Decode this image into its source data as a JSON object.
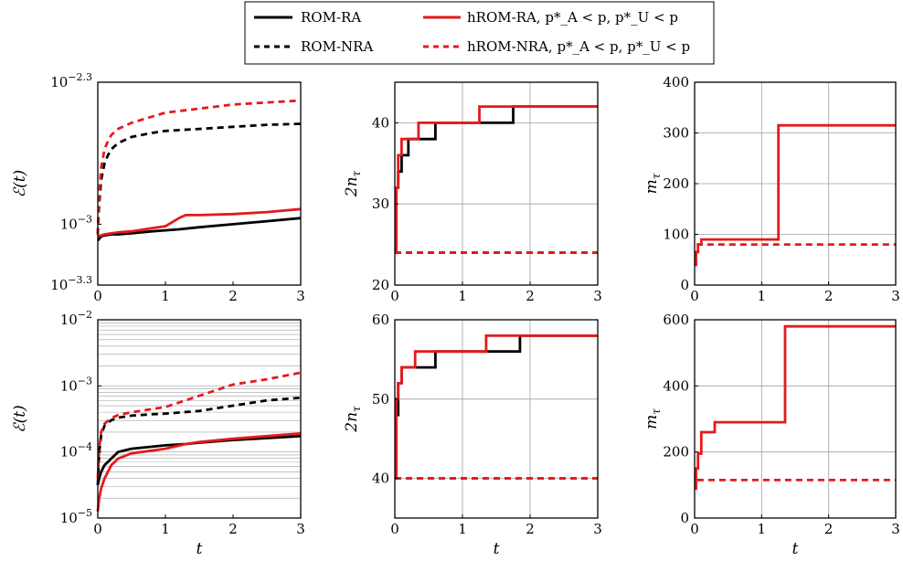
{
  "legend": {
    "entries": [
      {
        "label": "ROM-RA",
        "color": "#000000",
        "dash": "solid"
      },
      {
        "label": "hROM-RA, p*_A < p, p*_U < p",
        "color": "#e41a1c",
        "dash": "solid"
      },
      {
        "label": "ROM-NRA",
        "color": "#000000",
        "dash": "dashed"
      },
      {
        "label": "hROM-NRA, p*_A < p, p*_U < p",
        "color": "#e41a1c",
        "dash": "dashed"
      }
    ]
  },
  "colors": {
    "black": "#000000",
    "red": "#e41a1c",
    "grid": "#a0a0a0"
  },
  "chart_data": [
    {
      "type": "line",
      "scale": "log10",
      "grid": "none",
      "ylabel": "ℰ(t)",
      "xlabel": "",
      "xlim": [
        0,
        3
      ],
      "ylim": [
        -3.3,
        -2.3
      ],
      "xticks": [
        "0",
        "1",
        "2",
        "3"
      ],
      "yticks": [
        {
          "v": -2.3,
          "label": "10^-2.3"
        },
        {
          "v": -3,
          "label": "10^-3"
        },
        {
          "v": -3.3,
          "label": "10^-3.3"
        }
      ],
      "series": [
        {
          "legend": 0,
          "x": [
            0,
            0.05,
            0.1,
            0.2,
            0.3,
            0.5,
            0.8,
            1.0,
            1.2,
            1.5,
            2.0,
            2.5,
            3.0
          ],
          "y": [
            -3.08,
            -3.06,
            -3.055,
            -3.05,
            -3.05,
            -3.045,
            -3.035,
            -3.03,
            -3.025,
            -3.015,
            -3.0,
            -2.985,
            -2.97
          ]
        },
        {
          "legend": 1,
          "x": [
            0,
            0.05,
            0.1,
            0.2,
            0.3,
            0.5,
            0.8,
            1.0,
            1.1,
            1.2,
            1.3,
            1.5,
            2.0,
            2.5,
            3.0
          ],
          "y": [
            -3.06,
            -3.055,
            -3.05,
            -3.045,
            -3.04,
            -3.035,
            -3.02,
            -3.01,
            -2.99,
            -2.97,
            -2.955,
            -2.955,
            -2.95,
            -2.94,
            -2.925
          ]
        },
        {
          "legend": 2,
          "x": [
            0,
            0.02,
            0.05,
            0.1,
            0.15,
            0.2,
            0.3,
            0.5,
            0.8,
            1.0,
            1.5,
            2.0,
            2.5,
            3.0
          ],
          "y": [
            -3.05,
            -2.9,
            -2.78,
            -2.7,
            -2.66,
            -2.63,
            -2.6,
            -2.57,
            -2.55,
            -2.54,
            -2.53,
            -2.52,
            -2.51,
            -2.505
          ]
        },
        {
          "legend": 3,
          "x": [
            0,
            0.02,
            0.05,
            0.1,
            0.15,
            0.2,
            0.3,
            0.5,
            0.8,
            1.0,
            1.5,
            2.0,
            2.5,
            3.0
          ],
          "y": [
            -3.05,
            -2.85,
            -2.72,
            -2.63,
            -2.59,
            -2.56,
            -2.53,
            -2.5,
            -2.47,
            -2.45,
            -2.43,
            -2.41,
            -2.4,
            -2.39
          ]
        }
      ]
    },
    {
      "type": "line",
      "step": true,
      "scale": "linear",
      "grid": "on",
      "ylabel": "2n_τ",
      "xlabel": "",
      "xlim": [
        0,
        3
      ],
      "ylim": [
        20,
        45
      ],
      "xticks": [
        "0",
        "1",
        "2",
        "3"
      ],
      "yticks": [
        {
          "v": 20,
          "label": "20"
        },
        {
          "v": 30,
          "label": "30"
        },
        {
          "v": 40,
          "label": "40"
        }
      ],
      "series": [
        {
          "legend": 0,
          "x": [
            0,
            0.02,
            0.05,
            0.1,
            0.2,
            0.6,
            1.75,
            3.0
          ],
          "y": [
            24,
            32,
            34,
            36,
            38,
            40,
            42,
            42
          ]
        },
        {
          "legend": 1,
          "x": [
            0,
            0.02,
            0.05,
            0.1,
            0.35,
            1.25,
            3.0
          ],
          "y": [
            24,
            32,
            36,
            38,
            40,
            42,
            42
          ]
        },
        {
          "legend": 2,
          "x": [
            0,
            3.0
          ],
          "y": [
            24,
            24
          ]
        },
        {
          "legend": 3,
          "x": [
            0,
            3.0
          ],
          "y": [
            24,
            24
          ]
        }
      ]
    },
    {
      "type": "line",
      "step": true,
      "scale": "linear",
      "grid": "on",
      "ylabel": "m_τ",
      "xlabel": "",
      "xlim": [
        0,
        3
      ],
      "ylim": [
        0,
        400
      ],
      "xticks": [
        "0",
        "1",
        "2",
        "3"
      ],
      "yticks": [
        {
          "v": 0,
          "label": "0"
        },
        {
          "v": 100,
          "label": "100"
        },
        {
          "v": 200,
          "label": "200"
        },
        {
          "v": 300,
          "label": "300"
        },
        {
          "v": 400,
          "label": "400"
        }
      ],
      "series": [
        {
          "legend": 1,
          "x": [
            0,
            0.02,
            0.05,
            0.1,
            1.25,
            3.0
          ],
          "y": [
            40,
            65,
            80,
            90,
            315,
            315
          ]
        },
        {
          "legend": 3,
          "x": [
            0,
            0.02,
            0.05,
            3.0
          ],
          "y": [
            40,
            65,
            80,
            80
          ]
        }
      ]
    },
    {
      "type": "line",
      "scale": "log10",
      "grid": "minor",
      "ylabel": "ℰ(t)",
      "xlabel": "t",
      "xlim": [
        0,
        3
      ],
      "ylim": [
        -5,
        -2
      ],
      "xticks": [
        "0",
        "1",
        "2",
        "3"
      ],
      "yticks": [
        {
          "v": -2,
          "label": "10^-2"
        },
        {
          "v": -3,
          "label": "10^-3"
        },
        {
          "v": -4,
          "label": "10^-4"
        },
        {
          "v": -5,
          "label": "10^-5"
        }
      ],
      "series": [
        {
          "legend": 0,
          "x": [
            0,
            0.02,
            0.05,
            0.1,
            0.2,
            0.3,
            0.5,
            0.8,
            1.0,
            1.3,
            1.5,
            2.0,
            2.5,
            3.0
          ],
          "y": [
            -4.5,
            -4.4,
            -4.3,
            -4.2,
            -4.1,
            -4.0,
            -3.95,
            -3.92,
            -3.9,
            -3.88,
            -3.86,
            -3.82,
            -3.79,
            -3.76
          ]
        },
        {
          "legend": 1,
          "x": [
            0,
            0.02,
            0.05,
            0.1,
            0.2,
            0.3,
            0.5,
            0.8,
            1.0,
            1.3,
            1.5,
            2.0,
            2.5,
            3.0
          ],
          "y": [
            -4.9,
            -4.7,
            -4.55,
            -4.4,
            -4.2,
            -4.1,
            -4.02,
            -3.98,
            -3.95,
            -3.88,
            -3.85,
            -3.8,
            -3.76,
            -3.72
          ]
        },
        {
          "legend": 2,
          "x": [
            0,
            0.02,
            0.05,
            0.1,
            0.2,
            0.3,
            0.5,
            0.8,
            1.0,
            1.5,
            2.0,
            2.5,
            3.0
          ],
          "y": [
            -4.5,
            -4.0,
            -3.75,
            -3.6,
            -3.52,
            -3.48,
            -3.45,
            -3.43,
            -3.42,
            -3.38,
            -3.3,
            -3.22,
            -3.18
          ]
        },
        {
          "legend": 3,
          "x": [
            0,
            0.02,
            0.05,
            0.1,
            0.2,
            0.3,
            0.5,
            0.8,
            1.0,
            1.5,
            2.0,
            2.5,
            3.0
          ],
          "y": [
            -4.4,
            -3.95,
            -3.7,
            -3.57,
            -3.49,
            -3.44,
            -3.4,
            -3.35,
            -3.32,
            -3.15,
            -2.98,
            -2.9,
            -2.8
          ]
        }
      ]
    },
    {
      "type": "line",
      "step": true,
      "scale": "linear",
      "grid": "on",
      "ylabel": "2n_τ",
      "xlabel": "t",
      "xlim": [
        0,
        3
      ],
      "ylim": [
        35,
        60
      ],
      "xticks": [
        "0",
        "1",
        "2",
        "3"
      ],
      "yticks": [
        {
          "v": 40,
          "label": "40"
        },
        {
          "v": 50,
          "label": "50"
        },
        {
          "v": 60,
          "label": "60"
        }
      ],
      "series": [
        {
          "legend": 0,
          "x": [
            0,
            0.02,
            0.05,
            0.1,
            0.3,
            0.6,
            1.85,
            3.0
          ],
          "y": [
            40,
            48,
            52,
            54,
            54,
            56,
            58,
            58
          ]
        },
        {
          "legend": 1,
          "x": [
            0,
            0.02,
            0.05,
            0.1,
            0.3,
            1.35,
            3.0
          ],
          "y": [
            40,
            50,
            52,
            54,
            56,
            58,
            58
          ]
        },
        {
          "legend": 2,
          "x": [
            0,
            3.0
          ],
          "y": [
            40,
            40
          ]
        },
        {
          "legend": 3,
          "x": [
            0,
            3.0
          ],
          "y": [
            40,
            40
          ]
        }
      ]
    },
    {
      "type": "line",
      "step": true,
      "scale": "linear",
      "grid": "on",
      "ylabel": "m_τ",
      "xlabel": "t",
      "xlim": [
        0,
        3
      ],
      "ylim": [
        0,
        600
      ],
      "xticks": [
        "0",
        "1",
        "2",
        "3"
      ],
      "yticks": [
        {
          "v": 0,
          "label": "0"
        },
        {
          "v": 200,
          "label": "200"
        },
        {
          "v": 400,
          "label": "400"
        },
        {
          "v": 600,
          "label": "600"
        }
      ],
      "series": [
        {
          "legend": 1,
          "x": [
            0,
            0.02,
            0.05,
            0.1,
            0.3,
            1.35,
            3.0
          ],
          "y": [
            90,
            150,
            195,
            260,
            290,
            580,
            580
          ]
        },
        {
          "legend": 3,
          "x": [
            0,
            0.02,
            3.0
          ],
          "y": [
            90,
            115,
            115
          ]
        }
      ]
    }
  ]
}
